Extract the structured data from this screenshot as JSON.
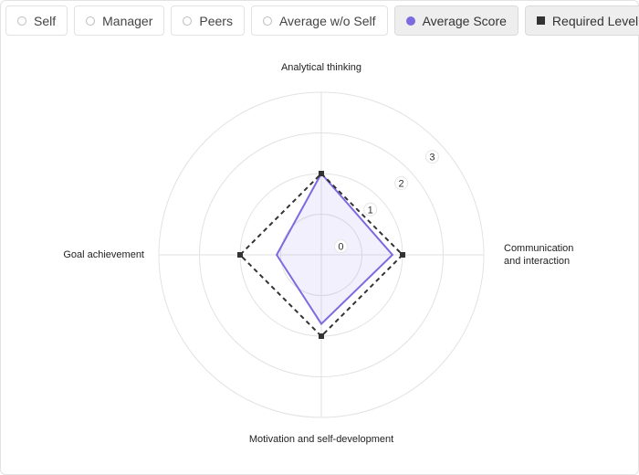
{
  "legend": {
    "items": [
      {
        "label": "Self",
        "marker": "ring",
        "active": false
      },
      {
        "label": "Manager",
        "marker": "ring",
        "active": false
      },
      {
        "label": "Peers",
        "marker": "ring",
        "active": false
      },
      {
        "label": "Average w/o Self",
        "marker": "ring",
        "active": false
      },
      {
        "label": "Average Score",
        "marker": "dot",
        "active": true,
        "color": "#7b6be0"
      },
      {
        "label": "Required Level",
        "marker": "square",
        "active": true,
        "color": "#333333"
      }
    ]
  },
  "chart_data": {
    "type": "radar",
    "title": "",
    "axes": [
      {
        "lines": [
          "Analytical thinking"
        ]
      },
      {
        "lines": [
          "Communication",
          "and interaction"
        ]
      },
      {
        "lines": [
          "Motivation and self-development"
        ]
      },
      {
        "lines": [
          "Goal achievement"
        ]
      }
    ],
    "scale": {
      "min": 0,
      "max": 3,
      "ticks": [
        "0",
        "1",
        "2",
        "3"
      ]
    },
    "series": [
      {
        "name": "Average Score",
        "values": [
          2,
          1.75,
          1.7,
          1.1
        ],
        "color": "#7b6be0",
        "fill": "rgba(123,107,224,0.10)",
        "style": "solid",
        "markers": false
      },
      {
        "name": "Required Level",
        "values": [
          2,
          2,
          2,
          2
        ],
        "color": "#333333",
        "style": "dashed",
        "markers": true
      }
    ],
    "grid": true
  }
}
